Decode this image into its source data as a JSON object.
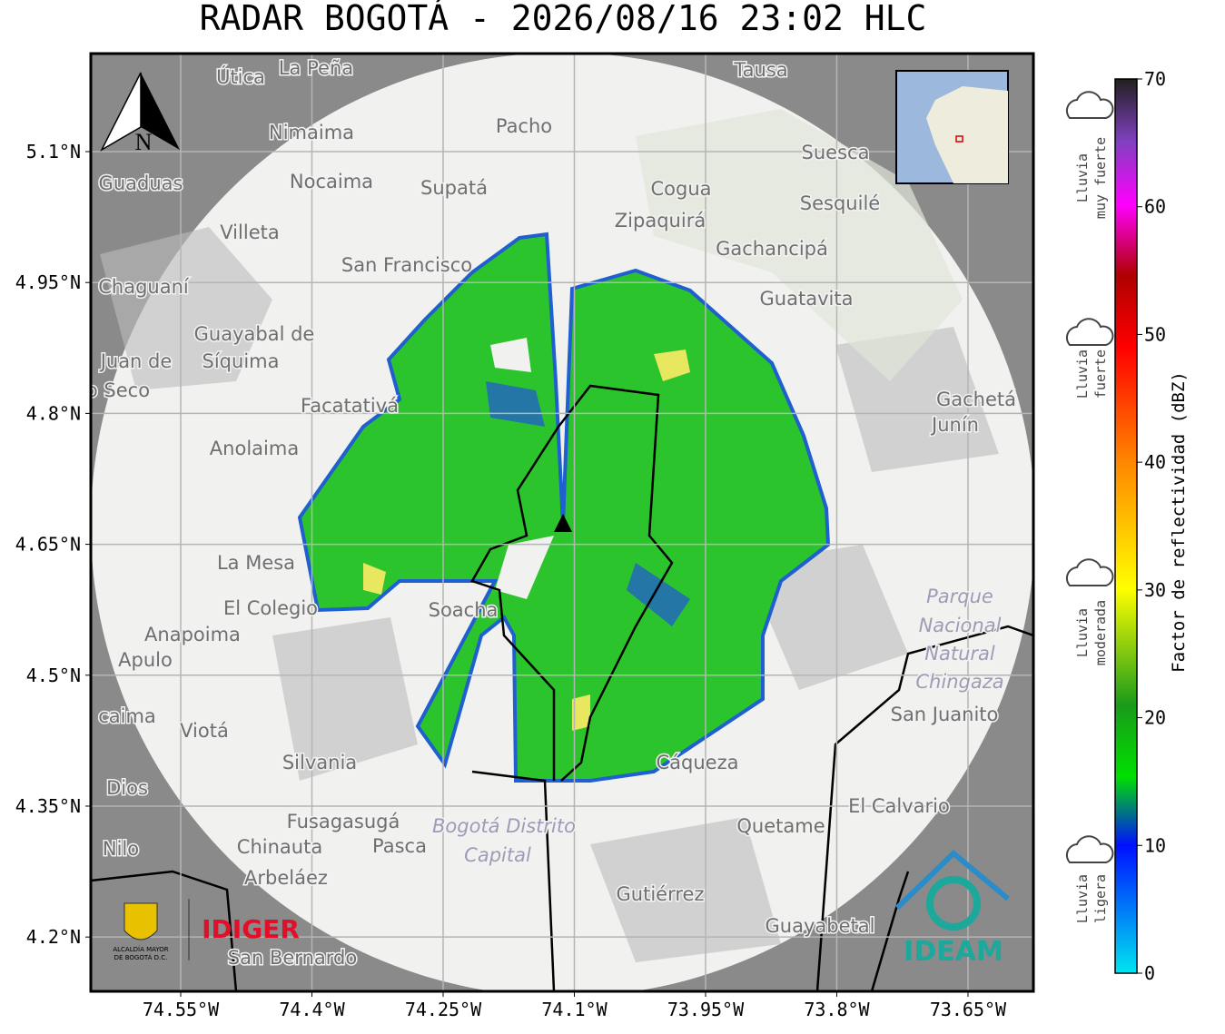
{
  "title": "RADAR BOGOTÁ - 2026/08/16 23:02 HLC",
  "compass": "N",
  "lat_ticks": [
    {
      "value": 5.1,
      "label": "5.1°N"
    },
    {
      "value": 4.95,
      "label": "4.95°N"
    },
    {
      "value": 4.8,
      "label": "4.8°N"
    },
    {
      "value": 4.65,
      "label": "4.65°N"
    },
    {
      "value": 4.5,
      "label": "4.5°N"
    },
    {
      "value": 4.35,
      "label": "4.35°N"
    },
    {
      "value": 4.2,
      "label": "4.2°N"
    }
  ],
  "lon_ticks": [
    {
      "value": -74.55,
      "label": "74.55°W"
    },
    {
      "value": -74.4,
      "label": "74.4°W"
    },
    {
      "value": -74.25,
      "label": "74.25°W"
    },
    {
      "value": -74.1,
      "label": "74.1°W"
    },
    {
      "value": -73.95,
      "label": "73.95°W"
    },
    {
      "value": -73.8,
      "label": "73.8°W"
    },
    {
      "value": -73.65,
      "label": "73.65°W"
    }
  ],
  "places": [
    "La Peña",
    "Útica",
    "Tausa",
    "Pacho",
    "Nimaima",
    "Nocaima",
    "Supatá",
    "Guaduas",
    "Cogua",
    "Suesca",
    "Sesquilé",
    "Zipaquirá",
    "Villeta",
    "Gachancipá",
    "San Francisco",
    "Chaguaní",
    "Guatavita",
    "Guayabal de",
    "Síquima",
    "Juan de",
    "o Seco",
    "Facatativá",
    "Gachetá",
    "Junín",
    "Anolaima",
    "La Mesa",
    "El Colegio",
    "Soacha",
    "Anapoima",
    "Apulo",
    "Parque",
    "Nacional",
    "Natural",
    "Chingaza",
    "San Juanito",
    "caima",
    "Viotá",
    "Silvania",
    "Cáqueza",
    "Dios",
    "El Calvario",
    "Fusagasugá",
    "Bogotá Distrito",
    "Capital",
    "Quetame",
    "Chinauta",
    "Pasca",
    "Nilo",
    "Arbeláez",
    "Gutiérrez",
    "Guayabetal",
    "San Bernardo"
  ],
  "colorbar": {
    "label": "Factor de reflectividad (dBZ)",
    "range": [
      0,
      70
    ],
    "ticks": [
      0,
      10,
      20,
      30,
      40,
      50,
      60,
      70
    ]
  },
  "rain_levels": [
    [
      "Lluvia",
      "muy fuerte"
    ],
    [
      "Lluvia",
      "fuerte"
    ],
    [
      "Lluvia",
      "moderada"
    ],
    [
      "Lluvia",
      "ligera"
    ]
  ],
  "logos": {
    "alcaldia": [
      "ALCALDÍA MAYOR",
      "DE BOGOTÁ D.C."
    ],
    "idiger": "IDIGER",
    "ideam": "IDEAM"
  }
}
